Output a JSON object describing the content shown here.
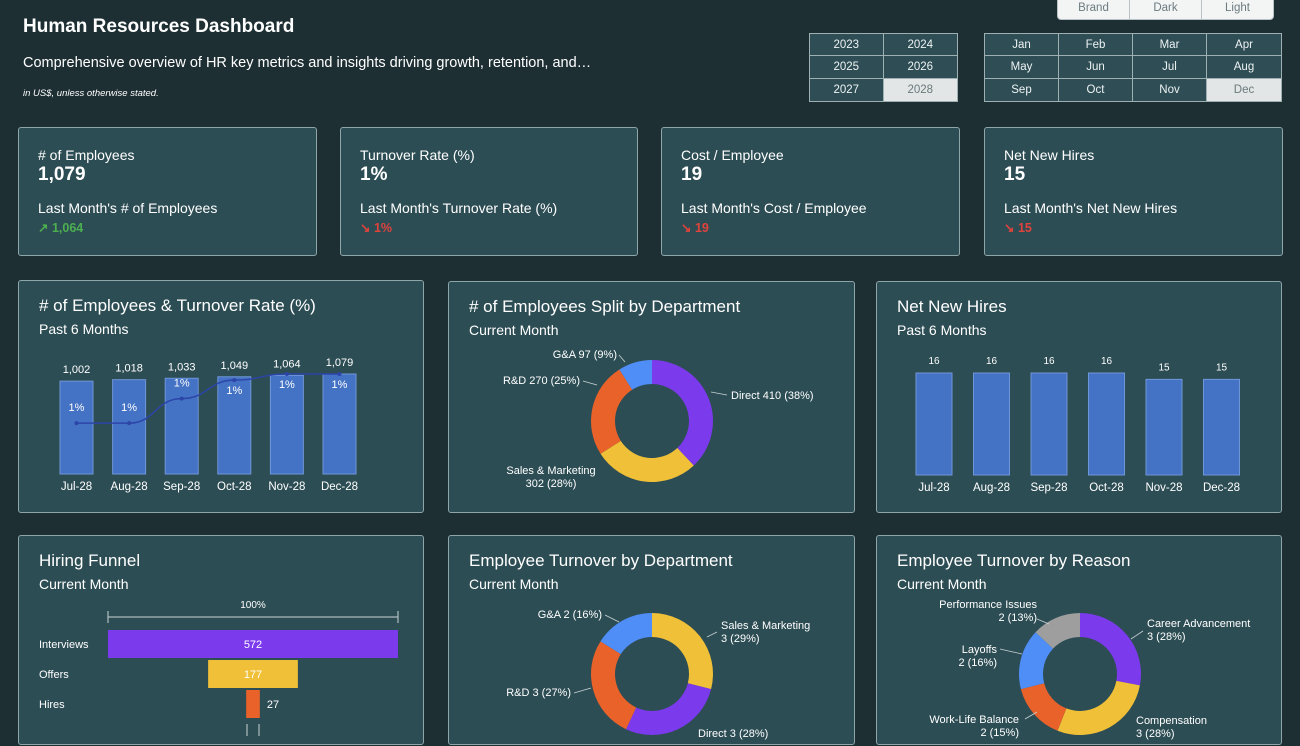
{
  "header": {
    "title": "Human Resources Dashboard",
    "subtitle": "Comprehensive overview of HR key metrics and insights driving growth, retention, and…",
    "note": "in US$, unless otherwise stated."
  },
  "theme_options": [
    "Brand",
    "Dark",
    "Light"
  ],
  "years": [
    "2023",
    "2024",
    "2025",
    "2026",
    "2027",
    "2028"
  ],
  "selected_year": "2028",
  "months": [
    "Jan",
    "Feb",
    "Mar",
    "Apr",
    "May",
    "Jun",
    "Jul",
    "Aug",
    "Sep",
    "Oct",
    "Nov",
    "Dec"
  ],
  "selected_month": "Dec",
  "colors": {
    "background": "#1e2f34",
    "card": "#2d4d54",
    "bar_blue": "#4472c4",
    "purple": "#7c3aed",
    "orange": "#e8622a",
    "yellow": "#f0c038",
    "light_blue": "#4f8ef7",
    "gray": "#9e9e9e",
    "up_green": "#4caf50",
    "down_red": "#e0423c"
  },
  "kpis": [
    {
      "title": "# of Employees",
      "value": "1,079",
      "prev_label": "Last Month's # of Employees",
      "prev_value": "↗ 1,064",
      "trend": "up"
    },
    {
      "title": "Turnover Rate (%)",
      "value": "1%",
      "prev_label": "Last Month's Turnover Rate (%)",
      "prev_value": "↘ 1%",
      "trend": "down"
    },
    {
      "title": "Cost / Employee",
      "value": "19",
      "prev_label": "Last Month's Cost / Employee",
      "prev_value": "↘ 19",
      "trend": "down"
    },
    {
      "title": "Net New Hires",
      "value": "15",
      "prev_label": "Last Month's Net New Hires",
      "prev_value": "↘ 15",
      "trend": "down"
    }
  ],
  "panels": {
    "emp_turnover": {
      "title": "# of Employees & Turnover Rate (%)",
      "subtitle": "Past 6 Months"
    },
    "dept_split": {
      "title": "# of Employees Split by Department",
      "subtitle": "Current Month"
    },
    "net_hires": {
      "title": "Net New Hires",
      "subtitle": "Past 6 Months"
    },
    "funnel": {
      "title": "Hiring Funnel",
      "subtitle": "Current Month"
    },
    "turnover_dept": {
      "title": "Employee Turnover by Department",
      "subtitle": "Current Month"
    },
    "turnover_reason": {
      "title": "Employee Turnover by Reason",
      "subtitle": "Current Month"
    }
  },
  "chart_data": [
    {
      "id": "emp_turnover",
      "type": "bar",
      "categories": [
        "Jul-28",
        "Aug-28",
        "Sep-28",
        "Oct-28",
        "Nov-28",
        "Dec-28"
      ],
      "series": [
        {
          "name": "",
          "values": [
            1002,
            1018,
            1033,
            1049,
            1064,
            1079
          ],
          "labels": [
            "1,002",
            "1,018",
            "1,033",
            "1,049",
            "1,064",
            "1,079"
          ]
        },
        {
          "name": "",
          "type": "line",
          "values": [
            0.6,
            0.6,
            1.0,
            1.3,
            1.4,
            1.4
          ],
          "labels": [
            "1%",
            "1%",
            "1%",
            "1%",
            "1%",
            "1%"
          ]
        }
      ]
    },
    {
      "id": "dept_split",
      "type": "pie",
      "donut": true,
      "slices": [
        {
          "label": "Direct 410 (38%)",
          "value": 410,
          "color": "#7c3aed"
        },
        {
          "label": "Sales & Marketing 302 (28%)",
          "label_lines": [
            "Sales & Marketing",
            "302 (28%)"
          ],
          "value": 302,
          "color": "#f0c038"
        },
        {
          "label": "R&D 270 (25%)",
          "value": 270,
          "color": "#e8622a"
        },
        {
          "label": "G&A 97 (9%)",
          "value": 97,
          "color": "#4f8ef7"
        }
      ]
    },
    {
      "id": "net_hires",
      "type": "bar",
      "categories": [
        "Jul-28",
        "Aug-28",
        "Sep-28",
        "Oct-28",
        "Nov-28",
        "Dec-28"
      ],
      "values": [
        16,
        16,
        16,
        16,
        15,
        15
      ],
      "labels": [
        "16",
        "16",
        "16",
        "16",
        "15",
        "15"
      ]
    },
    {
      "id": "funnel",
      "type": "bar",
      "orientation": "horizontal",
      "scale_label": "100%",
      "stages": [
        {
          "label": "Interviews",
          "value": 572,
          "text": "572",
          "color": "#7c3aed"
        },
        {
          "label": "Offers",
          "value": 177,
          "text": "177",
          "color": "#f0c038"
        },
        {
          "label": "Hires",
          "value": 27,
          "text": "27",
          "color": "#e8622a"
        }
      ]
    },
    {
      "id": "turnover_dept",
      "type": "pie",
      "donut": true,
      "slices": [
        {
          "label": "Sales & Marketing 3 (29%)",
          "label_lines": [
            "Sales & Marketing",
            "3 (29%)"
          ],
          "value": 29,
          "color": "#f0c038"
        },
        {
          "label": "Direct 3 (28%)",
          "label_lines": [
            "Direct 3 (28%)"
          ],
          "value": 28,
          "color": "#7c3aed"
        },
        {
          "label": "R&D 3 (27%)",
          "value": 27,
          "color": "#e8622a"
        },
        {
          "label": "G&A 2 (16%)",
          "value": 16,
          "color": "#4f8ef7"
        }
      ]
    },
    {
      "id": "turnover_reason",
      "type": "pie",
      "donut": true,
      "slices": [
        {
          "label": "Career Advancement 3 (28%)",
          "label_lines": [
            "Career Advancement",
            "3 (28%)"
          ],
          "value": 28,
          "color": "#7c3aed"
        },
        {
          "label": "Compensation 3 (28%)",
          "label_lines": [
            "Compensation",
            "3 (28%)"
          ],
          "value": 28,
          "color": "#f0c038"
        },
        {
          "label": "Work-Life Balance 2 (15%)",
          "label_lines": [
            "Work-Life Balance",
            "2 (15%)"
          ],
          "value": 15,
          "color": "#e8622a"
        },
        {
          "label": "Layoffs 2 (16%)",
          "label_lines": [
            "Layoffs",
            "2 (16%)"
          ],
          "value": 16,
          "color": "#4f8ef7"
        },
        {
          "label": "Performance Issues 2 (13%)",
          "label_lines": [
            "Performance Issues",
            "2 (13%)"
          ],
          "value": 13,
          "color": "#9e9e9e"
        }
      ]
    }
  ]
}
